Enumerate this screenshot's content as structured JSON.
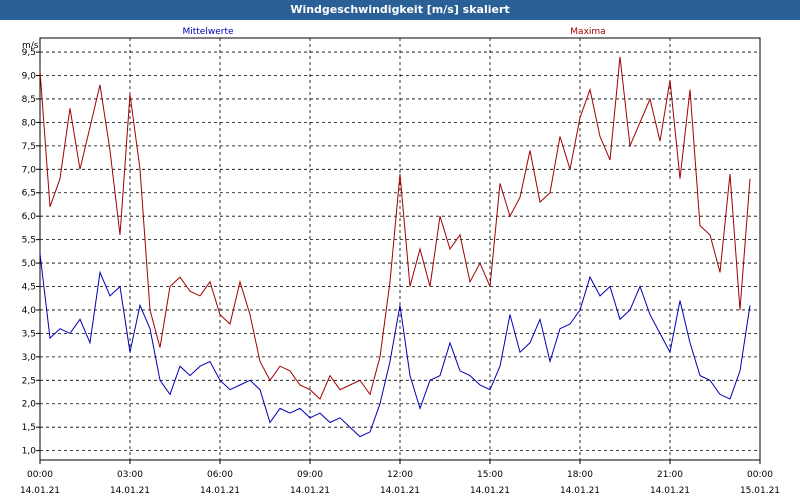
{
  "window": {
    "title": "Windgeschwindigkeit [m/s] skaliert"
  },
  "chart_data": {
    "type": "line",
    "title": "Windgeschwindigkeit [m/s] skaliert",
    "ylabel": "m/s",
    "ylim": [
      0.8,
      9.8
    ],
    "xlim": [
      "2021-01-14 00:00",
      "2021-01-15 00:00"
    ],
    "y_ticks": [
      "1,0",
      "1,5",
      "2,0",
      "2,5",
      "3,0",
      "3,5",
      "4,0",
      "4,5",
      "5,0",
      "5,5",
      "6,0",
      "6,5",
      "7,0",
      "7,5",
      "8,0",
      "8,5",
      "9,0",
      "9,5"
    ],
    "x_ticks": [
      {
        "time": "00:00",
        "date": "14.01.21"
      },
      {
        "time": "03:00",
        "date": "14.01.21"
      },
      {
        "time": "06:00",
        "date": "14.01.21"
      },
      {
        "time": "09:00",
        "date": "14.01.21"
      },
      {
        "time": "12:00",
        "date": "14.01.21"
      },
      {
        "time": "15:00",
        "date": "14.01.21"
      },
      {
        "time": "18:00",
        "date": "14.01.21"
      },
      {
        "time": "21:00",
        "date": "14.01.21"
      },
      {
        "time": "00:00",
        "date": "15.01.21"
      }
    ],
    "grid": true,
    "series": [
      {
        "name": "Mittelwerte",
        "color": "#0000b4",
        "x": [
          "00:00",
          "00:20",
          "00:40",
          "01:00",
          "01:20",
          "01:40",
          "02:00",
          "02:20",
          "02:40",
          "03:00",
          "03:20",
          "03:40",
          "04:00",
          "04:20",
          "04:40",
          "05:00",
          "05:20",
          "05:40",
          "06:00",
          "06:20",
          "06:40",
          "07:00",
          "07:20",
          "07:40",
          "08:00",
          "08:20",
          "08:40",
          "09:00",
          "09:20",
          "09:40",
          "10:00",
          "10:20",
          "10:40",
          "11:00",
          "11:20",
          "11:40",
          "12:00",
          "12:20",
          "12:40",
          "13:00",
          "13:20",
          "13:40",
          "14:00",
          "14:20",
          "14:40",
          "15:00",
          "15:20",
          "15:40",
          "16:00",
          "16:20",
          "16:40",
          "17:00",
          "17:20",
          "17:40",
          "18:00",
          "18:20",
          "18:40",
          "19:00",
          "19:20",
          "19:40",
          "20:00",
          "20:20",
          "20:40",
          "21:00",
          "21:20",
          "21:40",
          "22:00",
          "22:20",
          "22:40",
          "23:00",
          "23:20",
          "23:40"
        ],
        "values": [
          5.2,
          3.4,
          3.6,
          3.5,
          3.8,
          3.3,
          4.8,
          4.3,
          4.5,
          3.1,
          4.1,
          3.6,
          2.5,
          2.2,
          2.8,
          2.6,
          2.8,
          2.9,
          2.5,
          2.3,
          2.4,
          2.5,
          2.3,
          1.6,
          1.9,
          1.8,
          1.9,
          1.7,
          1.8,
          1.6,
          1.7,
          1.5,
          1.3,
          1.4,
          2.0,
          2.9,
          4.1,
          2.6,
          1.9,
          2.5,
          2.6,
          3.3,
          2.7,
          2.6,
          2.4,
          2.3,
          2.8,
          3.9,
          3.1,
          3.3,
          3.8,
          2.9,
          3.6,
          3.7,
          4.0,
          4.7,
          4.3,
          4.5,
          3.8,
          4.0,
          4.5,
          3.9,
          3.5,
          3.1,
          4.2,
          3.3,
          2.6,
          2.5,
          2.2,
          2.1,
          2.7,
          4.1
        ]
      },
      {
        "name": "Maxima",
        "color": "#a00000",
        "x": [
          "00:00",
          "00:20",
          "00:40",
          "01:00",
          "01:20",
          "01:40",
          "02:00",
          "02:20",
          "02:40",
          "03:00",
          "03:20",
          "03:40",
          "04:00",
          "04:20",
          "04:40",
          "05:00",
          "05:20",
          "05:40",
          "06:00",
          "06:20",
          "06:40",
          "07:00",
          "07:20",
          "07:40",
          "08:00",
          "08:20",
          "08:40",
          "09:00",
          "09:20",
          "09:40",
          "10:00",
          "10:20",
          "10:40",
          "11:00",
          "11:20",
          "11:40",
          "12:00",
          "12:20",
          "12:40",
          "13:00",
          "13:20",
          "13:40",
          "14:00",
          "14:20",
          "14:40",
          "15:00",
          "15:20",
          "15:40",
          "16:00",
          "16:20",
          "16:40",
          "17:00",
          "17:20",
          "17:40",
          "18:00",
          "18:20",
          "18:40",
          "19:00",
          "19:20",
          "19:40",
          "20:00",
          "20:20",
          "20:40",
          "21:00",
          "21:20",
          "21:40",
          "22:00",
          "22:20",
          "22:40",
          "23:00",
          "23:20",
          "23:40"
        ],
        "values": [
          9.1,
          6.2,
          6.8,
          8.3,
          7.0,
          7.9,
          8.8,
          7.4,
          5.6,
          8.6,
          7.0,
          4.0,
          3.2,
          4.5,
          4.7,
          4.4,
          4.3,
          4.6,
          3.9,
          3.7,
          4.6,
          3.9,
          2.9,
          2.5,
          2.8,
          2.7,
          2.4,
          2.3,
          2.1,
          2.6,
          2.3,
          2.4,
          2.5,
          2.2,
          3.0,
          4.6,
          6.9,
          4.5,
          5.3,
          4.5,
          6.0,
          5.3,
          5.6,
          4.6,
          5.0,
          4.5,
          6.7,
          6.0,
          6.4,
          7.4,
          6.3,
          6.5,
          7.7,
          7.0,
          8.1,
          8.7,
          7.7,
          7.2,
          9.4,
          7.5,
          8.0,
          8.5,
          7.6,
          8.9,
          6.8,
          8.7,
          5.8,
          5.6,
          4.8,
          6.9,
          4.0,
          6.8
        ]
      }
    ]
  }
}
